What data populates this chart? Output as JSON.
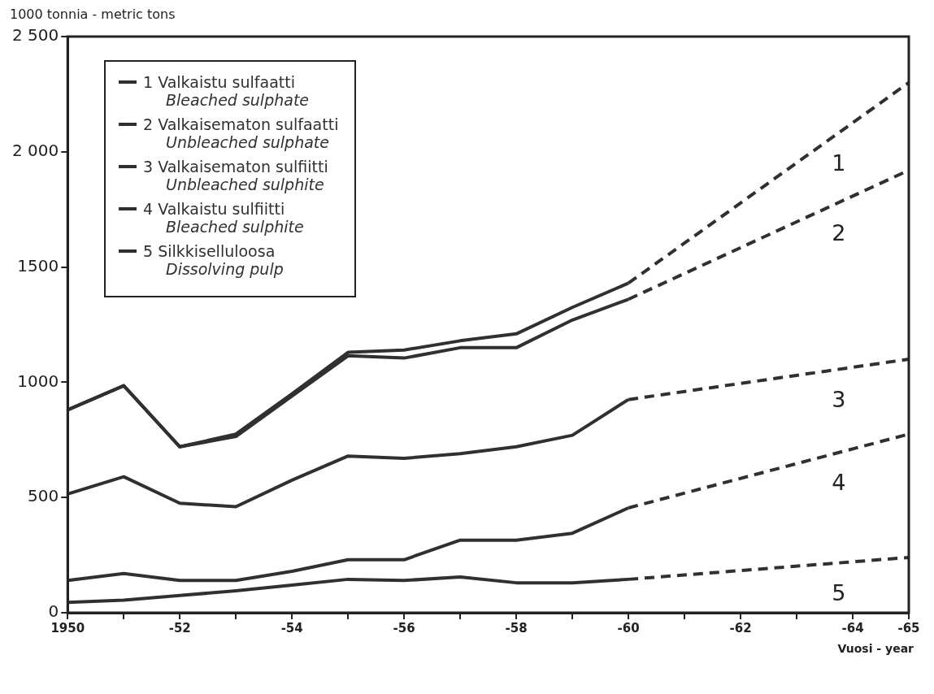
{
  "chart_data": {
    "type": "line",
    "ylabel": "1000 tonnia - metric tons",
    "xlabel": "Vuosi - year",
    "categories": [
      "1950",
      null,
      "-52",
      null,
      "-54",
      null,
      "-56",
      null,
      "-58",
      null,
      "-60",
      null,
      "-62",
      null,
      "-64",
      "-65"
    ],
    "ylim": [
      0,
      2500
    ],
    "yticks": [
      0,
      500,
      1000,
      1500,
      {
        "value": 2000,
        "label": "2 000"
      },
      {
        "value": 2500,
        "label": "2 500"
      }
    ],
    "grid": false,
    "legend": "top left",
    "marker": "none",
    "series": [
      {
        "name": "1 Valkaistu sulfaatti\nBleached sulphate",
        "color": "#303030",
        "line_style": "solid",
        "values": [
          880,
          985,
          720,
          775,
          950,
          1130,
          1140,
          1180,
          1210,
          1325,
          1430,
          null,
          null,
          null,
          null,
          null
        ]
      },
      {
        "name": "2 Valkaisematon sulfaatti\nUnbleached sulphate",
        "color": "#303030",
        "line_style": "solid",
        "values": [
          880,
          985,
          720,
          765,
          940,
          1115,
          1105,
          1150,
          1150,
          1270,
          1360,
          null,
          null,
          null,
          null,
          null
        ]
      },
      {
        "name": "3 Valkaisematon sulfiitti\nUnbleached sulphite",
        "color": "#303030",
        "line_style": "solid",
        "values": [
          515,
          590,
          475,
          460,
          575,
          680,
          670,
          690,
          720,
          770,
          925,
          null,
          null,
          null,
          null,
          null
        ]
      },
      {
        "name": "4 Valkaistu sulfiitti\nBleached sulphite",
        "color": "#303030",
        "line_style": "solid",
        "values": [
          140,
          170,
          140,
          140,
          180,
          230,
          230,
          315,
          315,
          345,
          455,
          null,
          null,
          null,
          null,
          null
        ]
      },
      {
        "name": "5 Silkkiselluloosa\nDissolving pulp",
        "color": "#303030",
        "line_style": "solid",
        "values": [
          45,
          55,
          75,
          95,
          120,
          145,
          140,
          155,
          130,
          130,
          145,
          null,
          null,
          null,
          null,
          null
        ]
      },
      {
        "color": "#303030",
        "line_style": "dashed",
        "x": [
          "-60",
          "-65"
        ],
        "values": [
          1430,
          2300
        ]
      },
      {
        "color": "#303030",
        "line_style": "dashed",
        "x": [
          "-60",
          "-65"
        ],
        "values": [
          1360,
          1920
        ]
      },
      {
        "color": "#303030",
        "line_style": "dashed",
        "x": [
          "-60",
          "-65"
        ],
        "values": [
          925,
          1100
        ]
      },
      {
        "color": "#303030",
        "line_style": "dashed",
        "x": [
          "-60",
          "-65"
        ],
        "values": [
          455,
          775
        ]
      },
      {
        "color": "#303030",
        "line_style": "dashed",
        "x": [
          "-60",
          "-65"
        ],
        "values": [
          145,
          240
        ]
      }
    ],
    "annotations": [
      "1",
      "2",
      "3",
      "4",
      "5"
    ]
  }
}
